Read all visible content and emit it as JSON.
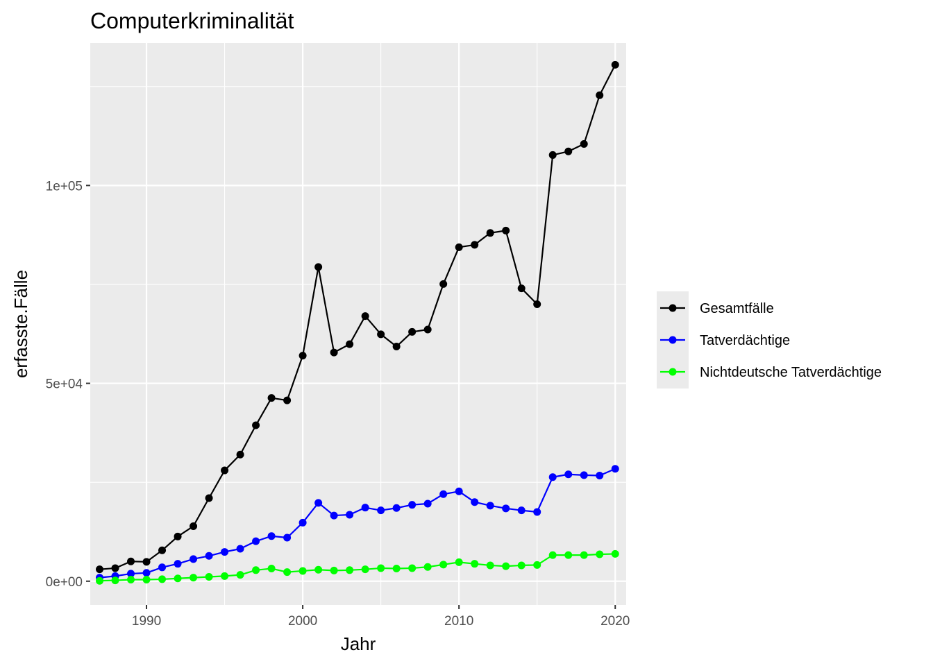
{
  "chart_data": {
    "type": "line",
    "title": "Computerkriminalität",
    "xlabel": "Jahr",
    "ylabel": "erfasste.Fälle",
    "xlim": [
      1986.4,
      2020.7
    ],
    "ylim": [
      -6000,
      136000
    ],
    "x_ticks": [
      1990,
      2000,
      2010,
      2020
    ],
    "x_tick_labels": [
      "1990",
      "2000",
      "2010",
      "2020"
    ],
    "y_ticks": [
      0,
      50000,
      100000
    ],
    "y_tick_labels": [
      "0e+00",
      "5e+04",
      "1e+05"
    ],
    "x_minor_ticks": [
      1995,
      2005,
      2015
    ],
    "y_minor_ticks": [
      25000,
      75000,
      125000
    ],
    "grid": true,
    "legend_position": "right",
    "x": [
      1987,
      1988,
      1989,
      1990,
      1991,
      1992,
      1993,
      1994,
      1995,
      1996,
      1997,
      1998,
      1999,
      2000,
      2001,
      2002,
      2003,
      2004,
      2005,
      2006,
      2007,
      2008,
      2009,
      2010,
      2011,
      2012,
      2013,
      2014,
      2015,
      2016,
      2017,
      2018,
      2019,
      2020
    ],
    "series": [
      {
        "name": "Gesamtfälle",
        "color": "#000000",
        "values": [
          3000,
          3300,
          5000,
          4900,
          7800,
          11300,
          13900,
          21000,
          28000,
          32000,
          39400,
          46300,
          45700,
          57000,
          79400,
          57800,
          59900,
          67000,
          62400,
          59300,
          63000,
          63600,
          75100,
          84400,
          85000,
          88000,
          88600,
          74000,
          70000,
          107700,
          108600,
          110500,
          122800,
          130500
        ]
      },
      {
        "name": "Tatverdächtige",
        "color": "#0000ff",
        "values": [
          900,
          1300,
          1900,
          2100,
          3500,
          4400,
          5600,
          6400,
          7400,
          8200,
          10100,
          11400,
          11000,
          14800,
          19800,
          16600,
          16800,
          18600,
          17900,
          18500,
          19300,
          19600,
          22000,
          22700,
          20000,
          19100,
          18400,
          17900,
          17500,
          26300,
          27000,
          26800,
          26700,
          28400
        ]
      },
      {
        "name": "Nichtdeutsche Tatverdächtige",
        "color": "#00ff00",
        "values": [
          100,
          200,
          400,
          400,
          500,
          700,
          900,
          1100,
          1300,
          1600,
          2800,
          3200,
          2300,
          2600,
          2900,
          2700,
          2800,
          3000,
          3300,
          3200,
          3300,
          3600,
          4200,
          4800,
          4400,
          4000,
          3800,
          4000,
          4100,
          6600,
          6600,
          6600,
          6800,
          6900
        ]
      }
    ]
  }
}
